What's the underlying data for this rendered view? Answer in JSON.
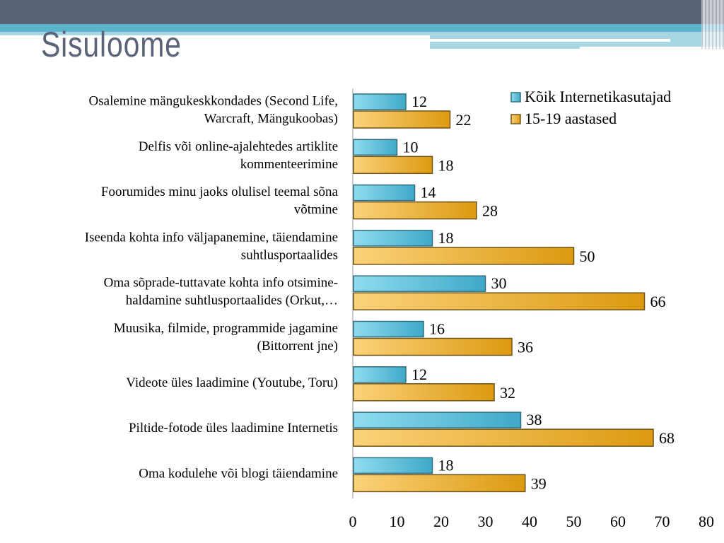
{
  "slide": {
    "title": "Sisuloome"
  },
  "colors": {
    "series1": "#5bc3dc",
    "series2": "#f0b030",
    "header_dark": "#5b6378",
    "header_teal": "#5ab4cc"
  },
  "chart_data": {
    "type": "bar",
    "orientation": "horizontal",
    "categories": [
      [
        "Osalemine mängukeskkondades (Second Life,",
        "Warcraft, Mängukoobas)"
      ],
      [
        "Delfis või online-ajalehtedes artiklite",
        "kommenteerimine"
      ],
      [
        "Foorumides minu jaoks olulisel teemal sõna",
        "võtmine"
      ],
      [
        "Iseenda kohta info väljapanemine, täiendamine",
        "suhtlusportaalides"
      ],
      [
        "Oma sõprade-tuttavate kohta info otsimine-",
        "haldamine suhtlusportaalides (Orkut,…"
      ],
      [
        "Muusika, filmide, programmide jagamine",
        "(Bittorrent jne)"
      ],
      [
        "Videote üles laadimine (Youtube, Toru)"
      ],
      [
        "Piltide-fotode üles laadimine Internetis"
      ],
      [
        "Oma kodulehe või blogi täiendamine"
      ]
    ],
    "series": [
      {
        "name": "Kõik Internetikasutajad",
        "values": [
          12,
          10,
          14,
          18,
          30,
          16,
          12,
          38,
          18
        ]
      },
      {
        "name": "15-19 aastased",
        "values": [
          22,
          18,
          28,
          50,
          66,
          36,
          32,
          68,
          39
        ]
      }
    ],
    "xlim": [
      0,
      80
    ],
    "xticks": [
      "0",
      "10",
      "20",
      "30",
      "40",
      "50",
      "60",
      "70",
      "80"
    ],
    "grid": false,
    "legend": "top-right"
  }
}
